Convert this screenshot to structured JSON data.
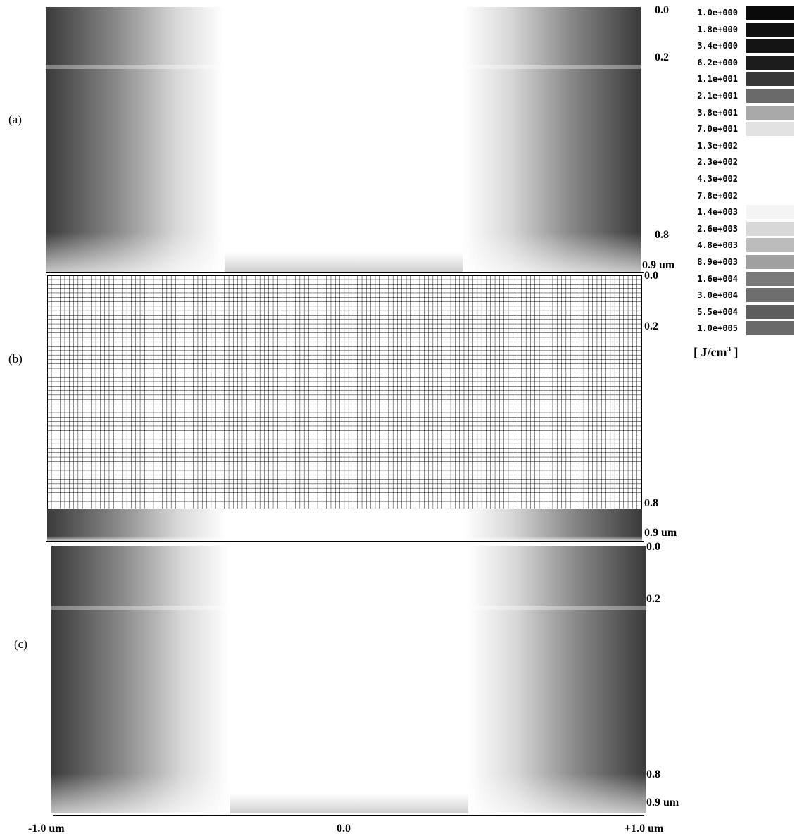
{
  "panels": [
    {
      "label": "(a)",
      "depth_labels": [
        "0.0",
        "0.2",
        "0.8",
        "0.9 um"
      ]
    },
    {
      "label": "(b)",
      "depth_labels": [
        "0.0",
        "0.2",
        "0.8",
        "0.9 um"
      ]
    },
    {
      "label": "(c)",
      "depth_labels": [
        "0.0",
        "0.2",
        "0.8",
        "0.9 um"
      ]
    }
  ],
  "x_labels": [
    "-1.0 um",
    "0.0",
    "+1.0 um"
  ],
  "legend": {
    "levels": [
      {
        "label": "1.0e+000",
        "color": "#0a0a0a"
      },
      {
        "label": "1.8e+000",
        "color": "#101010"
      },
      {
        "label": "3.4e+000",
        "color": "#141414"
      },
      {
        "label": "6.2e+000",
        "color": "#1c1c1c"
      },
      {
        "label": "1.1e+001",
        "color": "#383838"
      },
      {
        "label": "2.1e+001",
        "color": "#6a6a6a"
      },
      {
        "label": "3.8e+001",
        "color": "#a8a8a8"
      },
      {
        "label": "7.0e+001",
        "color": "#e2e2e2"
      },
      {
        "label": "1.3e+002",
        "color": "#ffffff"
      },
      {
        "label": "2.3e+002",
        "color": "#ffffff"
      },
      {
        "label": "4.3e+002",
        "color": "#ffffff"
      },
      {
        "label": "7.8e+002",
        "color": "#ffffff"
      },
      {
        "label": "1.4e+003",
        "color": "#f4f4f4"
      },
      {
        "label": "2.6e+003",
        "color": "#d8d8d8"
      },
      {
        "label": "4.8e+003",
        "color": "#bcbcbc"
      },
      {
        "label": "8.9e+003",
        "color": "#a0a0a0"
      },
      {
        "label": "1.6e+004",
        "color": "#7a7a7a"
      },
      {
        "label": "3.0e+004",
        "color": "#6e6e6e"
      },
      {
        "label": "5.5e+004",
        "color": "#5e5e5e"
      },
      {
        "label": "1.0e+005",
        "color": "#6a6a6a"
      }
    ],
    "unit": {
      "text": "[ J/cm",
      "sup": "3",
      "close": " ]"
    }
  }
}
